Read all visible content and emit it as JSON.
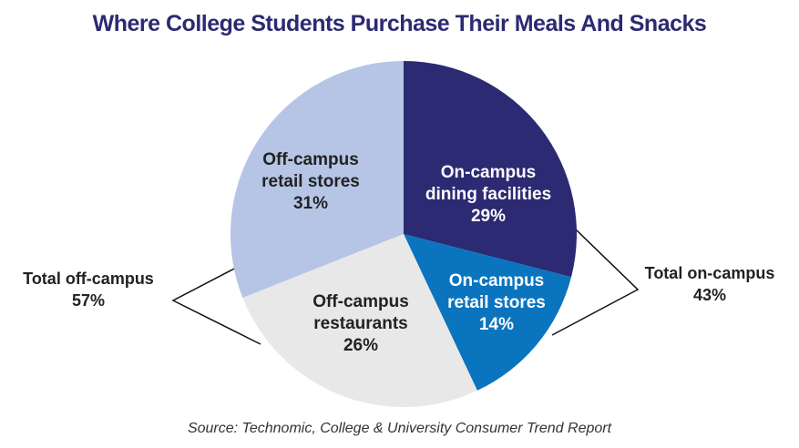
{
  "chart_data": {
    "type": "pie",
    "title": "Where College Students Purchase Their Meals And Snacks",
    "source": "Source: Technomic, College & University Consumer Trend Report",
    "categories": [
      "On-campus dining facilities",
      "On-campus retail stores",
      "Off-campus restaurants",
      "Off-campus retail stores"
    ],
    "values": [
      29,
      14,
      26,
      31
    ],
    "value_labels": [
      "29%",
      "14%",
      "26%",
      "31%"
    ],
    "colors": [
      "#2b2a72",
      "#0a74bf",
      "#e8e8e8",
      "#b6c5e6"
    ],
    "groups": [
      {
        "label": "Total off-campus",
        "value": 57,
        "value_label": "57%"
      },
      {
        "label": "Total on-campus",
        "value": 43,
        "value_label": "43%"
      }
    ]
  }
}
